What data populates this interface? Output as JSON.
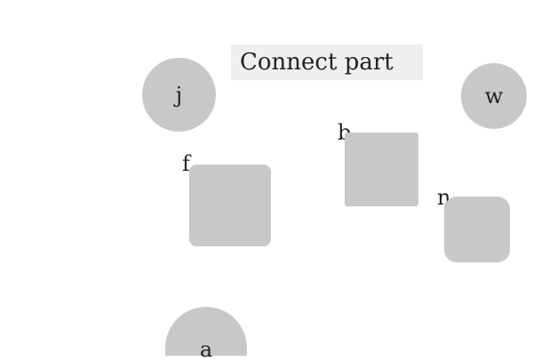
{
  "instruction": "Connect part",
  "shape_color": "#c8c8c8",
  "banner_color": "#efefef",
  "parts": {
    "j": {
      "label": "j",
      "shape": "circle"
    },
    "w": {
      "label": "w",
      "shape": "circle"
    },
    "a": {
      "label": "a",
      "shape": "circle"
    },
    "b": {
      "label": "b",
      "shape": "square"
    },
    "f": {
      "label": "f",
      "shape": "rounded-square"
    },
    "n": {
      "label": "n",
      "shape": "rounded-square"
    }
  }
}
